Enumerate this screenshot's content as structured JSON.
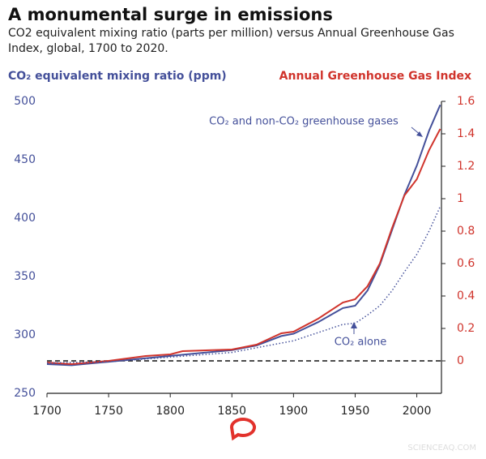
{
  "chart_data": {
    "type": "line",
    "title": "A monumental surge in emissions",
    "subtitle": "CO2 equivalent mixing ratio (parts per million) versus Annual Greenhouse Gas Index, global, 1700 to 2020.",
    "y_label": "CO₂ equivalent mixing ratio (ppm)",
    "y2_label": "Annual Greenhouse Gas Index",
    "annotations": [
      "CO₂ and non-CO₂ greenhouse gases",
      "CO₂ alone"
    ],
    "watermark": "SCIENCEAQ.COM",
    "xlim": [
      1700,
      2020
    ],
    "xticks": [
      1700,
      1750,
      1800,
      1850,
      1900,
      1950,
      2000
    ],
    "ylim": [
      250,
      500
    ],
    "yticks": [
      250,
      300,
      350,
      400,
      450,
      500
    ],
    "y2lim": [
      -0.2,
      1.6
    ],
    "y2ticks": [
      0,
      0.2,
      0.4,
      0.6,
      0.8,
      1,
      1.2,
      1.4,
      1.6
    ],
    "y_color": "#44509a",
    "y2_color": "#d0342c",
    "series": [
      {
        "color": "#44509a",
        "style": "solid",
        "x": [
          1700,
          1720,
          1750,
          1800,
          1850,
          1870,
          1890,
          1900,
          1920,
          1940,
          1950,
          1960,
          1970,
          1980,
          1990,
          2000,
          2010,
          2019
        ],
        "values": [
          275,
          274,
          277,
          282,
          287,
          291,
          299,
          301,
          311,
          323,
          325,
          338,
          360,
          390,
          420,
          445,
          475,
          497
        ]
      },
      {
        "color": "#d0342c",
        "style": "solid",
        "axis": "y2",
        "x": [
          1700,
          1720,
          1750,
          1780,
          1800,
          1810,
          1850,
          1870,
          1890,
          1900,
          1920,
          1940,
          1950,
          1960,
          1970,
          1980,
          1990,
          2000,
          2010,
          2019
        ],
        "values": [
          -0.01,
          -0.02,
          0.0,
          0.03,
          0.04,
          0.06,
          0.07,
          0.1,
          0.17,
          0.18,
          0.26,
          0.36,
          0.38,
          0.46,
          0.6,
          0.82,
          1.02,
          1.12,
          1.3,
          1.43
        ]
      },
      {
        "color": "#44509a",
        "style": "dotted",
        "x": [
          1700,
          1750,
          1800,
          1850,
          1900,
          1940,
          1950,
          1960,
          1970,
          1980,
          1990,
          2000,
          2010,
          2019
        ],
        "values": [
          276,
          277,
          281,
          285,
          295,
          309,
          310,
          317,
          325,
          338,
          354,
          369,
          389,
          410
        ]
      }
    ]
  }
}
